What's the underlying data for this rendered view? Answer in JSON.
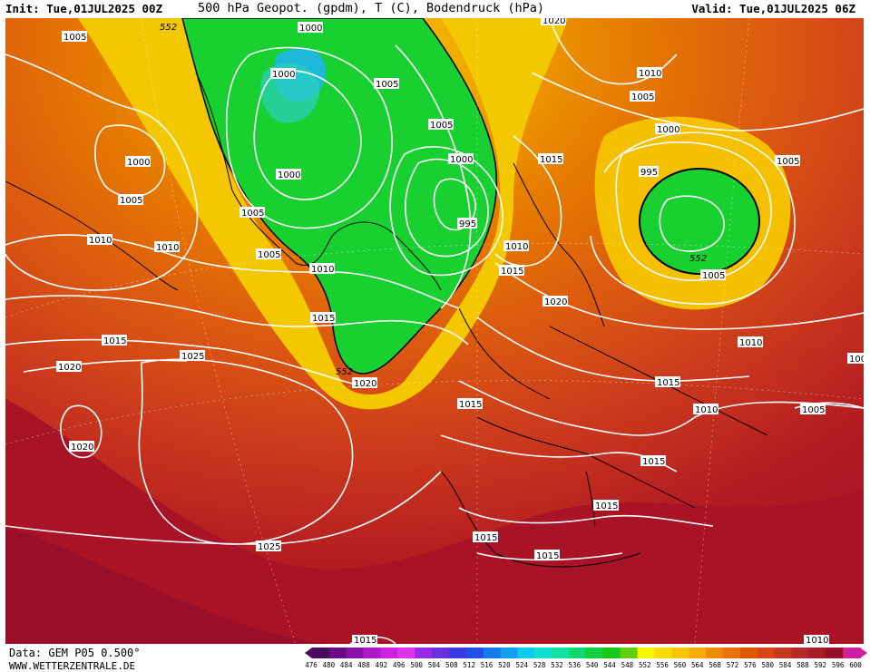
{
  "header": {
    "init": "Init: Tue,01JUL2025 00Z",
    "title": "500 hPa Geopot. (gpdm), T (C), Bodendruck (hPa)",
    "valid": "Valid: Tue,01JUL2025 06Z"
  },
  "footer": {
    "source": "Data: GEM P05 0.500°",
    "site": "WWW.WETTERZENTRALE.DE"
  },
  "legend": {
    "values": [
      "476",
      "480",
      "484",
      "488",
      "492",
      "496",
      "500",
      "504",
      "508",
      "512",
      "516",
      "520",
      "524",
      "528",
      "532",
      "536",
      "540",
      "544",
      "548",
      "552",
      "556",
      "560",
      "564",
      "568",
      "572",
      "576",
      "580",
      "584",
      "588",
      "592",
      "596",
      "600"
    ],
    "colors": [
      "#4b0a5e",
      "#6a0d83",
      "#8a10a8",
      "#b018c8",
      "#d020e0",
      "#e030f0",
      "#9a28e8",
      "#6a30e0",
      "#3a3ae0",
      "#2050e8",
      "#1878f0",
      "#10a0f0",
      "#10c8f0",
      "#10e0d0",
      "#10e0a0",
      "#10d870",
      "#10d040",
      "#18c818",
      "#60d010",
      "#f8f400",
      "#f8dc00",
      "#f8c400",
      "#f8ac00",
      "#f08a00",
      "#e87000",
      "#e05800",
      "#d84418",
      "#c83820",
      "#b82828",
      "#a81c28",
      "#980e28",
      "#d020a0"
    ]
  },
  "isobars": {
    "labels": [
      {
        "id": "l1005-nw",
        "text": "1005"
      },
      {
        "id": "l552-nw",
        "text": "552"
      },
      {
        "id": "l1000-gr-top",
        "text": "1000"
      },
      {
        "id": "l1000-gr",
        "text": "1000"
      },
      {
        "id": "l1005-gr",
        "text": "1005"
      },
      {
        "id": "l1000-can",
        "text": "1000"
      },
      {
        "id": "l1005-can",
        "text": "1005"
      },
      {
        "id": "l1000-gr-s",
        "text": "1000"
      },
      {
        "id": "l1005-gr-s",
        "text": "1005"
      },
      {
        "id": "l1010-lab",
        "text": "1010"
      },
      {
        "id": "l1010-can",
        "text": "1010"
      },
      {
        "id": "l1005-gr-ss",
        "text": "1005"
      },
      {
        "id": "l1010-atl",
        "text": "1010"
      },
      {
        "id": "l1015-atl",
        "text": "1015"
      },
      {
        "id": "l1015-w",
        "text": "1015"
      },
      {
        "id": "l1020-w",
        "text": "1020"
      },
      {
        "id": "l1025-atl",
        "text": "1025"
      },
      {
        "id": "l1020-sw",
        "text": "1020"
      },
      {
        "id": "l552-atl",
        "text": "552"
      },
      {
        "id": "l1020-atl",
        "text": "1020"
      },
      {
        "id": "l1025-s",
        "text": "1025"
      },
      {
        "id": "l1005-ice",
        "text": "1005"
      },
      {
        "id": "l1000-ice",
        "text": "1000"
      },
      {
        "id": "l995-ice",
        "text": "995"
      },
      {
        "id": "l1020-top",
        "text": "1020"
      },
      {
        "id": "l1010-ne",
        "text": "1010"
      },
      {
        "id": "l1005-ne",
        "text": "1005"
      },
      {
        "id": "l1000-rus",
        "text": "1000"
      },
      {
        "id": "l995-rus",
        "text": "995"
      },
      {
        "id": "l1005-e",
        "text": "1005"
      },
      {
        "id": "l1015-scan",
        "text": "1015"
      },
      {
        "id": "l1010-nor",
        "text": "1010"
      },
      {
        "id": "l1015-nor",
        "text": "1015"
      },
      {
        "id": "l552-rus",
        "text": "552"
      },
      {
        "id": "l1005-rus-s",
        "text": "1005"
      },
      {
        "id": "l1020-eu",
        "text": "1020"
      },
      {
        "id": "l1010-ukr",
        "text": "1010"
      },
      {
        "id": "l1015-uk",
        "text": "1015"
      },
      {
        "id": "l1015-bal",
        "text": "1015"
      },
      {
        "id": "l1010-tur",
        "text": "1010"
      },
      {
        "id": "l1005-tur",
        "text": "1005"
      },
      {
        "id": "l1015-it",
        "text": "1015"
      },
      {
        "id": "l1015-med",
        "text": "1015"
      },
      {
        "id": "l1015-afr",
        "text": "1015"
      },
      {
        "id": "l1015-afr2",
        "text": "1015"
      },
      {
        "id": "l1015-bot",
        "text": "1015"
      },
      {
        "id": "l1010-bot",
        "text": "1010"
      },
      {
        "id": "l100-e",
        "text": "100"
      }
    ]
  }
}
